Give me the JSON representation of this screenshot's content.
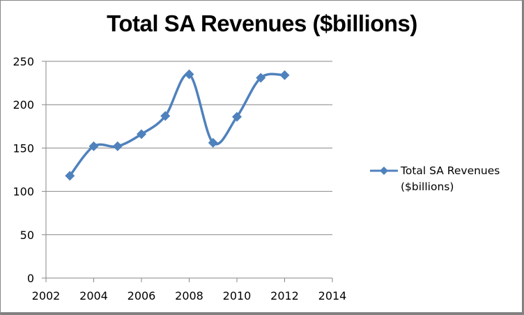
{
  "chart_data": {
    "type": "line",
    "title": "Total SA Revenues ($billions)",
    "xlabel": "",
    "ylabel": "",
    "x": [
      2003,
      2004,
      2005,
      2006,
      2007,
      2008,
      2009,
      2010,
      2011,
      2012
    ],
    "series": [
      {
        "name": "Total SA Revenues ($billions)",
        "values": [
          118,
          152,
          152,
          166,
          187,
          235,
          156,
          186,
          231,
          234
        ],
        "color": "#4f81bd",
        "marker": "diamond",
        "smooth": true
      }
    ],
    "xlim": [
      2002,
      2014
    ],
    "ylim": [
      0,
      250
    ],
    "xticks": [
      2002,
      2004,
      2006,
      2008,
      2010,
      2012,
      2014
    ],
    "yticks": [
      0,
      50,
      100,
      150,
      200,
      250
    ],
    "xtick_labels": [
      "2002",
      "2004",
      "2006",
      "2008",
      "2010",
      "2012",
      "2014"
    ],
    "ytick_labels": [
      "0",
      "50",
      "100",
      "150",
      "200",
      "250"
    ],
    "grid": "horizontal",
    "legend": {
      "position": "right",
      "entries": [
        "Total SA Revenues ($billions)"
      ]
    }
  },
  "legend_lines": [
    "Total SA Revenues",
    "($billions)"
  ]
}
